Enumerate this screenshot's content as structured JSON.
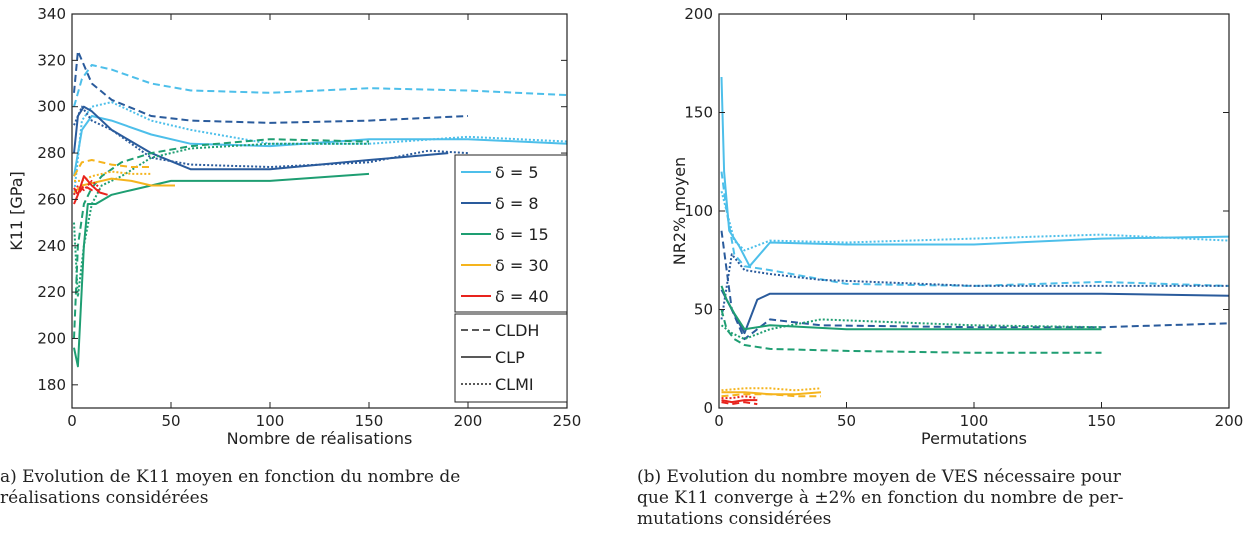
{
  "colors": {
    "d5": "#4DBFEA",
    "d8": "#2A5B9C",
    "d15": "#1E9E72",
    "d30": "#F5B41D",
    "d40": "#E8231D",
    "axis": "#222222"
  },
  "captions": {
    "a_line1": "a) Evolution de K11 moyen en fonction du nombre de",
    "a_line2": "réalisations considérées",
    "b_line1": "(b) Evolution du nombre moyen de VES nécessaire pour",
    "b_line2": "que K11 converge à ±2% en fonction du nombre de per-",
    "b_line3": "mutations considérées"
  },
  "chart_data": [
    {
      "type": "line",
      "xlabel": "Nombre de réalisations",
      "ylabel": "K11 [GPa]",
      "xlim": [
        0,
        250
      ],
      "ylim": [
        170,
        340
      ],
      "xticks": [
        "0",
        "50",
        "100",
        "150",
        "200",
        "250"
      ],
      "yticks": [
        "180",
        "200",
        "220",
        "240",
        "260",
        "280",
        "300",
        "320",
        "340"
      ],
      "legend_position": "right",
      "legend": {
        "deltas": [
          "δ = 5",
          "δ = 8",
          "δ = 15",
          "δ = 30",
          "δ = 40"
        ],
        "styles": [
          "CLDH",
          "CLP",
          "CLMI"
        ]
      },
      "series": [
        {
          "name": "δ = 5 CLDH",
          "x": [
            1,
            5,
            10,
            20,
            40,
            60,
            100,
            150,
            200,
            250
          ],
          "y": [
            300,
            312,
            318,
            316,
            310,
            307,
            306,
            308,
            307,
            305
          ]
        },
        {
          "name": "δ = 5 CLP",
          "x": [
            1,
            5,
            10,
            20,
            40,
            60,
            100,
            150,
            200,
            250
          ],
          "y": [
            270,
            290,
            296,
            294,
            288,
            284,
            283,
            286,
            286,
            284
          ]
        },
        {
          "name": "δ = 5 CLMI",
          "x": [
            1,
            5,
            10,
            20,
            40,
            60,
            100,
            150,
            200,
            250
          ],
          "y": [
            262,
            294,
            300,
            302,
            294,
            290,
            284,
            284,
            287,
            285
          ]
        },
        {
          "name": "δ = 8 CLDH",
          "x": [
            1,
            3,
            6,
            10,
            20,
            40,
            60,
            100,
            150,
            200
          ],
          "y": [
            306,
            324,
            318,
            310,
            303,
            296,
            294,
            293,
            294,
            296
          ]
        },
        {
          "name": "δ = 8 CLP",
          "x": [
            1,
            3,
            6,
            10,
            20,
            40,
            60,
            100,
            150,
            190
          ],
          "y": [
            280,
            296,
            300,
            298,
            290,
            280,
            273,
            273,
            277,
            280
          ]
        },
        {
          "name": "δ = 8 CLMI",
          "x": [
            1,
            5,
            10,
            20,
            40,
            60,
            100,
            150,
            180,
            200
          ],
          "y": [
            292,
            300,
            294,
            290,
            278,
            275,
            274,
            276,
            281,
            280
          ]
        },
        {
          "name": "δ = 15 CLDH",
          "x": [
            1,
            3,
            6,
            10,
            15,
            25,
            40,
            60,
            100,
            150
          ],
          "y": [
            200,
            240,
            258,
            265,
            270,
            276,
            280,
            283,
            286,
            285
          ]
        },
        {
          "name": "δ = 15 CLP",
          "x": [
            1,
            3,
            6,
            8,
            12,
            20,
            30,
            50,
            100,
            150
          ],
          "y": [
            196,
            188,
            240,
            258,
            258,
            262,
            264,
            268,
            268,
            271
          ]
        },
        {
          "name": "δ = 15 CLMI",
          "x": [
            1,
            3,
            6,
            10,
            15,
            25,
            40,
            60,
            100,
            150
          ],
          "y": [
            250,
            218,
            240,
            258,
            266,
            270,
            278,
            282,
            284,
            284
          ]
        },
        {
          "name": "δ = 30 CLDH",
          "x": [
            1,
            5,
            10,
            20,
            30,
            40
          ],
          "y": [
            270,
            276,
            277,
            275,
            274,
            274
          ]
        },
        {
          "name": "δ = 30 CLP",
          "x": [
            1,
            5,
            10,
            20,
            30,
            40,
            52
          ],
          "y": [
            263,
            266,
            267,
            269,
            268,
            266,
            266
          ]
        },
        {
          "name": "δ = 30 CLMI",
          "x": [
            1,
            5,
            10,
            20,
            30,
            40
          ],
          "y": [
            268,
            268,
            270,
            272,
            271,
            271
          ]
        },
        {
          "name": "δ = 40 CLDH",
          "x": [
            1,
            3,
            6,
            10,
            14
          ],
          "y": [
            265,
            262,
            266,
            264,
            264
          ]
        },
        {
          "name": "δ = 40 CLP",
          "x": [
            1,
            3,
            6,
            10,
            14,
            18
          ],
          "y": [
            258,
            262,
            270,
            266,
            263,
            262
          ]
        },
        {
          "name": "δ = 40 CLMI",
          "x": [
            1,
            3,
            6,
            10,
            14
          ],
          "y": [
            262,
            266,
            264,
            268,
            265
          ]
        }
      ]
    },
    {
      "type": "line",
      "xlabel": "Permutations",
      "ylabel": "NR2% moyen",
      "xlim": [
        0,
        200
      ],
      "ylim": [
        0,
        200
      ],
      "xticks": [
        "0",
        "50",
        "100",
        "150",
        "200"
      ],
      "yticks": [
        "0",
        "50",
        "100",
        "150",
        "200"
      ],
      "series": [
        {
          "name": "δ = 5 CLDH",
          "x": [
            1,
            3,
            6,
            10,
            20,
            50,
            100,
            150,
            200
          ],
          "y": [
            120,
            100,
            78,
            72,
            70,
            63,
            62,
            64,
            62
          ]
        },
        {
          "name": "δ = 5 CLP",
          "x": [
            1,
            2,
            4,
            8,
            12,
            20,
            50,
            100,
            150,
            200
          ],
          "y": [
            168,
            120,
            90,
            82,
            72,
            84,
            83,
            83,
            86,
            87
          ]
        },
        {
          "name": "δ = 5 CLMI",
          "x": [
            1,
            3,
            6,
            10,
            20,
            50,
            100,
            150,
            200
          ],
          "y": [
            110,
            100,
            85,
            80,
            85,
            84,
            86,
            88,
            85
          ]
        },
        {
          "name": "δ = 8 CLDH",
          "x": [
            1,
            5,
            10,
            20,
            40,
            100,
            150,
            200
          ],
          "y": [
            90,
            50,
            35,
            45,
            42,
            41,
            41,
            43
          ]
        },
        {
          "name": "δ = 8 CLP",
          "x": [
            1,
            5,
            10,
            15,
            20,
            50,
            100,
            150,
            200
          ],
          "y": [
            60,
            50,
            38,
            55,
            58,
            58,
            58,
            58,
            57
          ]
        },
        {
          "name": "δ = 8 CLMI",
          "x": [
            1,
            5,
            10,
            20,
            40,
            100,
            150,
            200
          ],
          "y": [
            45,
            78,
            70,
            68,
            65,
            62,
            62,
            62
          ]
        },
        {
          "name": "δ = 15 CLDH",
          "x": [
            1,
            3,
            6,
            10,
            20,
            50,
            100,
            150
          ],
          "y": [
            50,
            40,
            35,
            32,
            30,
            29,
            28,
            28
          ]
        },
        {
          "name": "δ = 15 CLP",
          "x": [
            1,
            3,
            6,
            10,
            20,
            50,
            100,
            150
          ],
          "y": [
            62,
            55,
            48,
            40,
            42,
            40,
            40,
            40
          ]
        },
        {
          "name": "δ = 15 CLMI",
          "x": [
            1,
            5,
            10,
            20,
            40,
            100,
            150
          ],
          "y": [
            42,
            38,
            35,
            40,
            45,
            42,
            41
          ]
        },
        {
          "name": "δ = 30 CLDH",
          "x": [
            1,
            10,
            20,
            30,
            40
          ],
          "y": [
            6,
            7,
            7,
            6,
            6
          ]
        },
        {
          "name": "δ = 30 CLP",
          "x": [
            1,
            10,
            20,
            30,
            40
          ],
          "y": [
            8,
            8,
            7,
            7,
            8
          ]
        },
        {
          "name": "δ = 30 CLMI",
          "x": [
            1,
            10,
            20,
            30,
            40
          ],
          "y": [
            9,
            10,
            10,
            9,
            10
          ]
        },
        {
          "name": "δ = 40 CLDH",
          "x": [
            1,
            5,
            10,
            15
          ],
          "y": [
            3,
            2,
            3,
            2
          ]
        },
        {
          "name": "δ = 40 CLP",
          "x": [
            1,
            5,
            10,
            15
          ],
          "y": [
            4,
            3,
            4,
            4
          ]
        },
        {
          "name": "δ = 40 CLMI",
          "x": [
            1,
            5,
            10,
            15
          ],
          "y": [
            5,
            5,
            6,
            5
          ]
        }
      ]
    }
  ]
}
